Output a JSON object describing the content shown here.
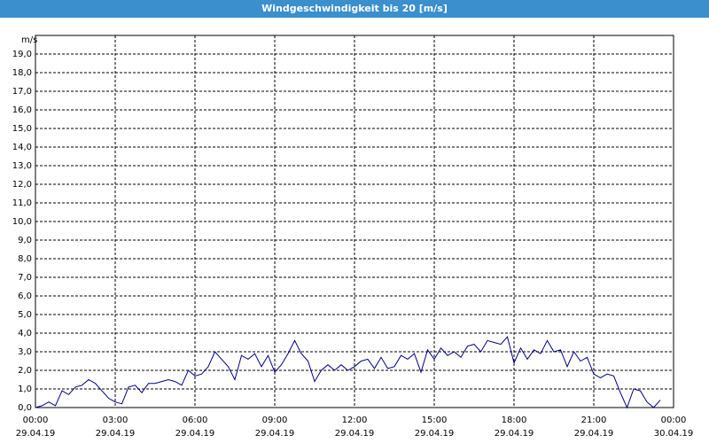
{
  "chart_data": {
    "type": "line",
    "title": "Windgeschwindigkeit bis 20 [m/s]",
    "y_label": "m/s",
    "xlim": [
      0,
      24
    ],
    "xticks": [
      {
        "value": 0,
        "label": "00:00"
      },
      {
        "value": 3,
        "label": "03:00"
      },
      {
        "value": 6,
        "label": "06:00"
      },
      {
        "value": 9,
        "label": "09:00"
      },
      {
        "value": 12,
        "label": "12:00"
      },
      {
        "value": 15,
        "label": "15:00"
      },
      {
        "value": 18,
        "label": "18:00"
      },
      {
        "value": 21,
        "label": "21:00"
      },
      {
        "value": 24,
        "label": "00:00"
      }
    ],
    "xtick_dates": [
      "29.04.19",
      "29.04.19",
      "29.04.19",
      "29.04.19",
      "29.04.19",
      "29.04.19",
      "29.04.19",
      "29.04.19",
      "30.04.19"
    ],
    "ylim": [
      0,
      20
    ],
    "yticks": [
      {
        "value": 0,
        "label": "0,0"
      },
      {
        "value": 1,
        "label": "1,0"
      },
      {
        "value": 2,
        "label": "2,0"
      },
      {
        "value": 3,
        "label": "3,0"
      },
      {
        "value": 4,
        "label": "4,0"
      },
      {
        "value": 5,
        "label": "5,0"
      },
      {
        "value": 6,
        "label": "6,0"
      },
      {
        "value": 7,
        "label": "7,0"
      },
      {
        "value": 8,
        "label": "8,0"
      },
      {
        "value": 9,
        "label": "9,0"
      },
      {
        "value": 10,
        "label": "10,0"
      },
      {
        "value": 11,
        "label": "11,0"
      },
      {
        "value": 12,
        "label": "12,0"
      },
      {
        "value": 13,
        "label": "13,0"
      },
      {
        "value": 14,
        "label": "14,0"
      },
      {
        "value": 15,
        "label": "15,0"
      },
      {
        "value": 16,
        "label": "16,0"
      },
      {
        "value": 17,
        "label": "17,0"
      },
      {
        "value": 18,
        "label": "18,0"
      },
      {
        "value": 19,
        "label": "19,0"
      }
    ],
    "grid": true,
    "color": "#00008b",
    "x": [
      0,
      0.25,
      0.5,
      0.75,
      1,
      1.25,
      1.5,
      1.75,
      2,
      2.25,
      2.5,
      2.75,
      3,
      3.25,
      3.5,
      3.75,
      4,
      4.25,
      4.5,
      4.75,
      5,
      5.25,
      5.5,
      5.75,
      6,
      6.25,
      6.5,
      6.75,
      7,
      7.25,
      7.5,
      7.75,
      8,
      8.25,
      8.5,
      8.75,
      9,
      9.25,
      9.5,
      9.75,
      10,
      10.25,
      10.5,
      10.75,
      11,
      11.25,
      11.5,
      11.75,
      12,
      12.25,
      12.5,
      12.75,
      13,
      13.25,
      13.5,
      13.75,
      14,
      14.25,
      14.5,
      14.75,
      15,
      15.25,
      15.5,
      15.75,
      16,
      16.25,
      16.5,
      16.75,
      17,
      17.25,
      17.5,
      17.75,
      18,
      18.25,
      18.5,
      18.75,
      19,
      19.25,
      19.5,
      19.75,
      20,
      20.25,
      20.5,
      20.75,
      21,
      21.25,
      21.5,
      21.75,
      22,
      22.25,
      22.5,
      22.75,
      23,
      23.25,
      23.5
    ],
    "values": [
      0.0,
      0.1,
      0.3,
      0.1,
      0.9,
      0.7,
      1.1,
      1.2,
      1.5,
      1.3,
      0.9,
      0.5,
      0.3,
      0.2,
      1.1,
      1.2,
      0.8,
      1.3,
      1.3,
      1.4,
      1.5,
      1.4,
      1.2,
      2.0,
      1.7,
      1.8,
      2.2,
      3.0,
      2.6,
      2.2,
      1.5,
      2.8,
      2.6,
      2.9,
      2.2,
      2.8,
      1.9,
      2.3,
      2.9,
      3.6,
      2.9,
      2.5,
      1.4,
      2.0,
      2.3,
      2.0,
      2.3,
      2.0,
      2.2,
      2.5,
      2.6,
      2.1,
      2.7,
      2.1,
      2.2,
      2.8,
      2.6,
      2.9,
      1.9,
      3.1,
      2.6,
      3.2,
      2.8,
      3.0,
      2.7,
      3.3,
      3.4,
      3.0,
      3.6,
      3.5,
      3.4,
      3.8,
      2.4,
      3.2,
      2.6,
      3.1,
      2.9,
      3.6,
      3.0,
      3.1,
      2.2,
      3.0,
      2.5,
      2.7,
      1.8,
      1.6,
      1.8,
      1.7,
      0.8,
      0.0,
      1.0,
      0.9,
      0.3,
      0.0,
      0.4
    ]
  }
}
